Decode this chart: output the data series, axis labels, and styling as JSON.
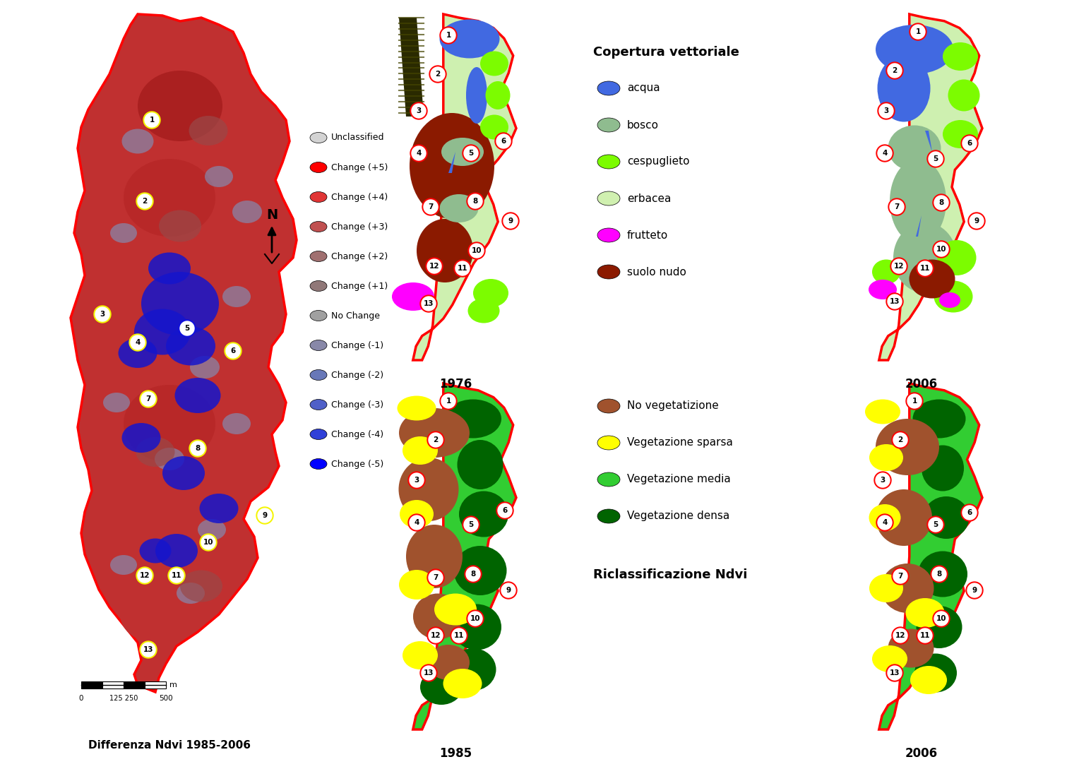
{
  "background_color": "#ffffff",
  "fig_width": 15.45,
  "fig_height": 10.89,
  "left_map": {
    "label": "Differenza Ndvi 1985-2006",
    "legend_items": [
      {
        "label": "Unclassified",
        "color": "#d3d3d3"
      },
      {
        "label": "Change (+5)",
        "color": "#ff0000"
      },
      {
        "label": "Change (+4)",
        "color": "#e03535"
      },
      {
        "label": "Change (+3)",
        "color": "#c05050"
      },
      {
        "label": "Change (+2)",
        "color": "#a07070"
      },
      {
        "label": "Change (+1)",
        "color": "#907878"
      },
      {
        "label": "No Change",
        "color": "#a0a0a0"
      },
      {
        "label": "Change (-1)",
        "color": "#8888a8"
      },
      {
        "label": "Change (-2)",
        "color": "#6878b8"
      },
      {
        "label": "Change (-3)",
        "color": "#5060c8"
      },
      {
        "label": "Change (-4)",
        "color": "#3040d8"
      },
      {
        "label": "Change (-5)",
        "color": "#0000ff"
      }
    ]
  },
  "copertura_legend": {
    "title": "Copertura vettoriale",
    "items": [
      {
        "label": "acqua",
        "color": "#4169e1"
      },
      {
        "label": "bosco",
        "color": "#8fbc8f"
      },
      {
        "label": "cespuglieto",
        "color": "#7cfc00"
      },
      {
        "label": "erbacea",
        "color": "#d0f0b0"
      },
      {
        "label": "frutteto",
        "color": "#ff00ff"
      },
      {
        "label": "suolo nudo",
        "color": "#8b1a00"
      }
    ]
  },
  "ndvi_legend": {
    "title": "Riclassificazione Ndvi",
    "items": [
      {
        "label": "No vegetatizione",
        "color": "#a0522d"
      },
      {
        "label": "Vegetazione sparsa",
        "color": "#ffff00"
      },
      {
        "label": "Vegetazione media",
        "color": "#32cd32"
      },
      {
        "label": "Vegetazione densa",
        "color": "#006400"
      }
    ]
  }
}
